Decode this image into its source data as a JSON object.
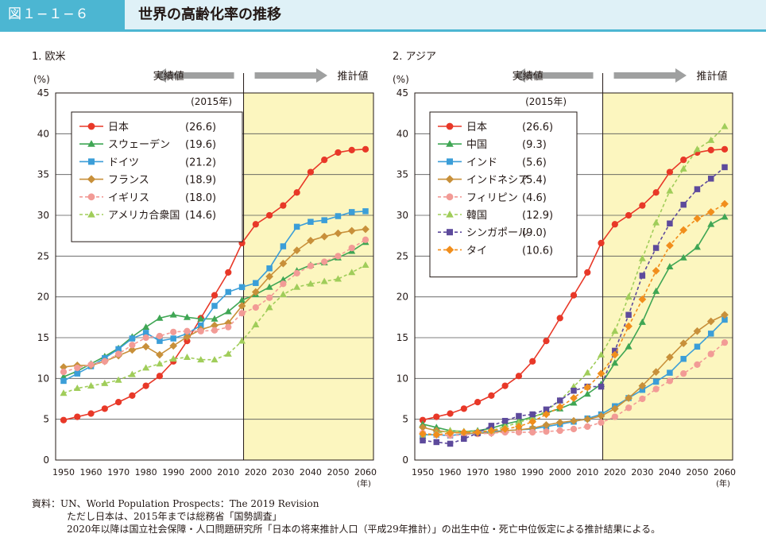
{
  "header": {
    "figure_id": "図１−１−６",
    "title": "世界の高齢化率の推移"
  },
  "source": {
    "line1": "資料：UN、World Population Prospects：The 2019 Revision",
    "line2": "ただし日本は、2015年までは総務省「国勢調査」",
    "line3": "2020年以降は国立社会保障・人口問題研究所「日本の将来推計人口（平成29年推計）」の出生中位・死亡中位仮定による推計結果による。"
  },
  "chart_data": [
    {
      "type": "line",
      "title": "1. 欧米",
      "ylabel": "(%)",
      "xlabel": "(年)",
      "ylim": [
        0,
        45
      ],
      "yticks": [
        0,
        5,
        10,
        15,
        20,
        25,
        30,
        35,
        40,
        45
      ],
      "xticks": [
        1950,
        1960,
        1970,
        1980,
        1990,
        2000,
        2010,
        2020,
        2030,
        2040,
        2050,
        2060
      ],
      "x": [
        1950,
        1955,
        1960,
        1965,
        1970,
        1975,
        1980,
        1985,
        1990,
        1995,
        2000,
        2005,
        2010,
        2015,
        2020,
        2025,
        2030,
        2035,
        2040,
        2045,
        2050,
        2055,
        2060
      ],
      "actual_label": "実績値",
      "projected_label": "推計値",
      "projection_start": 2015,
      "legend_header": "(2015年)",
      "series": [
        {
          "name": "日本",
          "value_label": "(26.6)",
          "color": "#e83828",
          "marker": "circle",
          "dashed": false,
          "values": [
            4.9,
            5.3,
            5.7,
            6.3,
            7.1,
            7.9,
            9.1,
            10.3,
            12.1,
            14.6,
            17.4,
            20.2,
            23.0,
            26.6,
            28.9,
            30.0,
            31.2,
            32.8,
            35.3,
            36.8,
            37.7,
            38.0,
            38.1
          ]
        },
        {
          "name": "スウェーデン",
          "value_label": "(19.6)",
          "color": "#3fa654",
          "marker": "triangle",
          "dashed": false,
          "values": [
            10.2,
            10.9,
            11.8,
            12.7,
            13.7,
            15.1,
            16.3,
            17.4,
            17.8,
            17.5,
            17.3,
            17.3,
            18.2,
            19.6,
            20.3,
            21.2,
            22.1,
            23.2,
            23.9,
            24.2,
            24.8,
            25.6,
            26.7
          ]
        },
        {
          "name": "ドイツ",
          "value_label": "(21.2)",
          "color": "#3b9ed8",
          "marker": "square",
          "dashed": false,
          "values": [
            9.7,
            10.6,
            11.5,
            12.5,
            13.6,
            14.9,
            15.6,
            14.6,
            14.9,
            15.5,
            16.5,
            18.9,
            20.6,
            21.2,
            21.7,
            23.5,
            26.2,
            28.6,
            29.2,
            29.4,
            29.9,
            30.4,
            30.5
          ]
        },
        {
          "name": "フランス",
          "value_label": "(18.9)",
          "color": "#c8903a",
          "marker": "diamond",
          "dashed": false,
          "values": [
            11.4,
            11.6,
            11.6,
            12.1,
            12.8,
            13.5,
            13.9,
            12.9,
            14.0,
            15.1,
            16.0,
            16.5,
            16.8,
            18.9,
            20.6,
            22.5,
            24.1,
            25.7,
            26.9,
            27.4,
            27.8,
            28.1,
            28.3
          ]
        },
        {
          "name": "イギリス",
          "value_label": "(18.0)",
          "color": "#f29b96",
          "marker": "circle",
          "dashed": true,
          "values": [
            10.8,
            11.3,
            11.7,
            12.1,
            13.0,
            14.1,
            15.0,
            15.2,
            15.7,
            15.8,
            15.8,
            15.9,
            16.3,
            18.0,
            18.7,
            19.9,
            21.6,
            22.9,
            23.8,
            24.3,
            25.0,
            26.0,
            27.0
          ]
        },
        {
          "name": "アメリカ合衆国",
          "value_label": "(14.6)",
          "color": "#a0cd5a",
          "marker": "triangle",
          "dashed": true,
          "values": [
            8.2,
            8.8,
            9.1,
            9.4,
            9.8,
            10.5,
            11.3,
            11.8,
            12.4,
            12.6,
            12.3,
            12.3,
            13.0,
            14.6,
            16.6,
            18.7,
            20.3,
            21.2,
            21.6,
            21.9,
            22.2,
            23.0,
            23.9
          ]
        }
      ]
    },
    {
      "type": "line",
      "title": "2. アジア",
      "ylabel": "(%)",
      "xlabel": "(年)",
      "ylim": [
        0,
        45
      ],
      "yticks": [
        0,
        5,
        10,
        15,
        20,
        25,
        30,
        35,
        40,
        45
      ],
      "xticks": [
        1950,
        1960,
        1970,
        1980,
        1990,
        2000,
        2010,
        2020,
        2030,
        2040,
        2050,
        2060
      ],
      "x": [
        1950,
        1955,
        1960,
        1965,
        1970,
        1975,
        1980,
        1985,
        1990,
        1995,
        2000,
        2005,
        2010,
        2015,
        2020,
        2025,
        2030,
        2035,
        2040,
        2045,
        2050,
        2055,
        2060
      ],
      "actual_label": "実績値",
      "projected_label": "推計値",
      "projection_start": 2015,
      "legend_header": "(2015年)",
      "series": [
        {
          "name": "日本",
          "value_label": "(26.6)",
          "color": "#e83828",
          "marker": "circle",
          "dashed": false,
          "values": [
            4.9,
            5.3,
            5.7,
            6.3,
            7.1,
            7.9,
            9.1,
            10.3,
            12.1,
            14.6,
            17.4,
            20.2,
            23.0,
            26.6,
            28.9,
            30.0,
            31.2,
            32.8,
            35.3,
            36.8,
            37.7,
            38.0,
            38.1
          ]
        },
        {
          "name": "中国",
          "value_label": "(9.3)",
          "color": "#3fa654",
          "marker": "triangle",
          "dashed": false,
          "values": [
            4.4,
            4.0,
            3.6,
            3.5,
            3.6,
            3.9,
            4.4,
            4.8,
            5.3,
            5.8,
            6.3,
            7.0,
            8.1,
            9.3,
            11.9,
            13.9,
            16.9,
            20.7,
            23.7,
            24.8,
            26.1,
            28.9,
            29.8
          ]
        },
        {
          "name": "インド",
          "value_label": "(5.6)",
          "color": "#3b9ed8",
          "marker": "square",
          "dashed": false,
          "values": [
            3.1,
            3.1,
            3.0,
            3.2,
            3.3,
            3.5,
            3.6,
            3.7,
            3.8,
            4.1,
            4.4,
            4.7,
            5.1,
            5.6,
            6.6,
            7.6,
            8.6,
            9.6,
            10.7,
            12.4,
            13.9,
            15.5,
            17.2
          ]
        },
        {
          "name": "インドネシア",
          "value_label": "(5.4)",
          "color": "#c8903a",
          "marker": "diamond",
          "dashed": false,
          "values": [
            4.0,
            3.6,
            3.4,
            3.3,
            3.3,
            3.3,
            3.6,
            3.7,
            3.9,
            4.3,
            4.6,
            4.8,
            5.0,
            5.4,
            6.3,
            7.6,
            9.1,
            10.8,
            12.6,
            14.3,
            15.8,
            17.0,
            17.8
          ]
        },
        {
          "name": "フィリピン",
          "value_label": "(4.6)",
          "color": "#f29b96",
          "marker": "circle",
          "dashed": true,
          "values": [
            3.3,
            3.1,
            3.0,
            3.1,
            3.2,
            3.3,
            3.4,
            3.4,
            3.4,
            3.5,
            3.6,
            3.8,
            4.1,
            4.6,
            5.3,
            6.4,
            7.5,
            8.7,
            9.7,
            10.6,
            11.7,
            13.0,
            14.4
          ]
        },
        {
          "name": "韓国",
          "value_label": "(12.9)",
          "color": "#a0cd5a",
          "marker": "triangle",
          "dashed": true,
          "values": [
            2.9,
            3.3,
            3.6,
            3.5,
            3.5,
            3.6,
            4.1,
            4.6,
            5.2,
            6.0,
            7.3,
            9.0,
            10.7,
            12.9,
            15.8,
            20.0,
            24.7,
            29.1,
            33.0,
            35.7,
            38.1,
            39.2,
            40.9
          ]
        },
        {
          "name": "シンガポール",
          "value_label": "(9.0)",
          "color": "#5d4a9c",
          "marker": "square",
          "dashed": true,
          "values": [
            2.4,
            2.2,
            2.0,
            2.6,
            3.3,
            4.2,
            4.8,
            5.4,
            5.6,
            6.2,
            7.3,
            8.5,
            9.0,
            9.0,
            13.4,
            17.8,
            22.6,
            26.0,
            29.0,
            31.3,
            33.2,
            34.5,
            35.9
          ]
        },
        {
          "name": "タイ",
          "value_label": "(10.6)",
          "color": "#f18e1c",
          "marker": "diamond",
          "dashed": true,
          "values": [
            3.2,
            3.1,
            3.3,
            3.4,
            3.4,
            3.6,
            3.8,
            4.1,
            4.7,
            5.6,
            6.5,
            7.6,
            8.9,
            10.6,
            12.9,
            16.4,
            19.7,
            23.2,
            26.3,
            28.2,
            29.6,
            30.4,
            31.4
          ]
        }
      ]
    }
  ]
}
